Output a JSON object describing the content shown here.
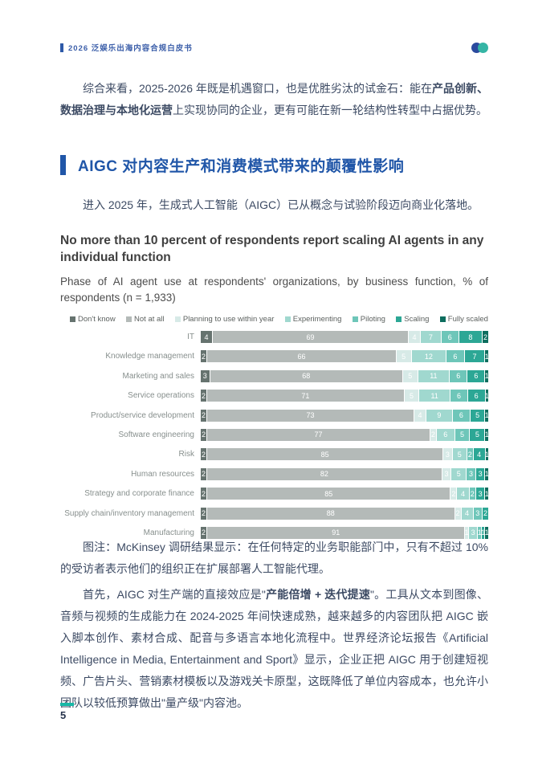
{
  "header": {
    "doc_title": "2026 泛娱乐出海内容合规白皮书",
    "accent_color": "#2e5aa8",
    "logo_colors": [
      "#2b4a9e",
      "#35b5a5"
    ]
  },
  "intro_paragraph": {
    "runs": [
      {
        "text": "综合来看，2025-2026 年既是机遇窗口，也是优胜劣汰的试金石：能在",
        "bold": false
      },
      {
        "text": "产品创新、数据治理与本地化运营",
        "bold": true
      },
      {
        "text": "上实现协同的企业，更有可能在新一轮结构性转型中占据优势。",
        "bold": false
      }
    ]
  },
  "section": {
    "heading": "AIGC 对内容生产和消费模式带来的颠覆性影响",
    "lead_paragraph": "进入 2025 年，生成式人工智能（AIGC）已从概念与试验阶段迈向商业化落地。"
  },
  "chart_data": {
    "type": "bar",
    "orientation": "horizontal",
    "stacked": true,
    "title": "No more than 10 percent of respondents report scaling AI agents in any individual function",
    "subtitle": "Phase of AI agent use at respondents' organizations, by business function, % of respondents (n = 1,933)",
    "unit": "% of respondents",
    "legend_position": "top",
    "xlim": [
      0,
      100
    ],
    "series_names": [
      "Don't know",
      "Not at all",
      "Planning to use within year",
      "Experimenting",
      "Piloting",
      "Scaling",
      "Fully scaled"
    ],
    "series_colors": [
      "#66736f",
      "#b4bab8",
      "#d7eae7",
      "#a0d8cf",
      "#6ec6b9",
      "#2ca795",
      "#0d6d5e"
    ],
    "categories": [
      "IT",
      "Knowledge management",
      "Marketing and sales",
      "Service operations",
      "Product/service development",
      "Software engineering",
      "Risk",
      "Human resources",
      "Strategy and corporate finance",
      "Supply chain/inventory management",
      "Manufacturing"
    ],
    "values": [
      [
        4,
        69,
        4,
        7,
        6,
        8,
        2
      ],
      [
        2,
        66,
        5,
        12,
        6,
        7,
        1
      ],
      [
        3,
        68,
        5,
        11,
        6,
        6,
        1
      ],
      [
        2,
        71,
        5,
        11,
        6,
        6,
        1
      ],
      [
        2,
        73,
        4,
        9,
        6,
        5,
        1
      ],
      [
        2,
        77,
        2,
        6,
        5,
        5,
        1
      ],
      [
        2,
        85,
        3,
        5,
        2,
        4,
        1
      ],
      [
        2,
        82,
        3,
        5,
        3,
        3,
        1
      ],
      [
        2,
        85,
        2,
        4,
        2,
        3,
        1
      ],
      [
        2,
        88,
        2,
        4,
        3,
        2,
        0
      ],
      [
        2,
        91,
        1,
        3,
        1,
        1,
        1
      ]
    ]
  },
  "chart_caption": {
    "runs": [
      {
        "text": "图注：McKinsey 调研结果显示：在任何特定的业务职能部门中，只有不超过 10% 的受访者表示他们的组织正在扩展部署人工智能代理。",
        "bold": false
      }
    ]
  },
  "body_paragraph": {
    "runs": [
      {
        "text": "首先，AIGC 对生产端的直接效应是\"",
        "bold": false
      },
      {
        "text": "产能倍增 + 迭代提速",
        "bold": true
      },
      {
        "text": "\"。工具从文本到图像、音频与视频的生成能力在 2024-2025 年间快速成熟，越来越多的内容团队把 AIGC 嵌入脚本创作、素材合成、配音与多语言本地化流程中。世界经济论坛报告《Artificial Intelligence in Media, Entertainment and Sport》显示，企业正把 AIGC 用于创建短视频、广告片头、营销素材模板以及游戏关卡原型，这既降低了单位内容成本，也允许小团队以较低预算做出\"量产级\"内容池。",
        "bold": false
      }
    ]
  },
  "footer": {
    "page_number": "5",
    "accent_color": "#17b8a6"
  }
}
